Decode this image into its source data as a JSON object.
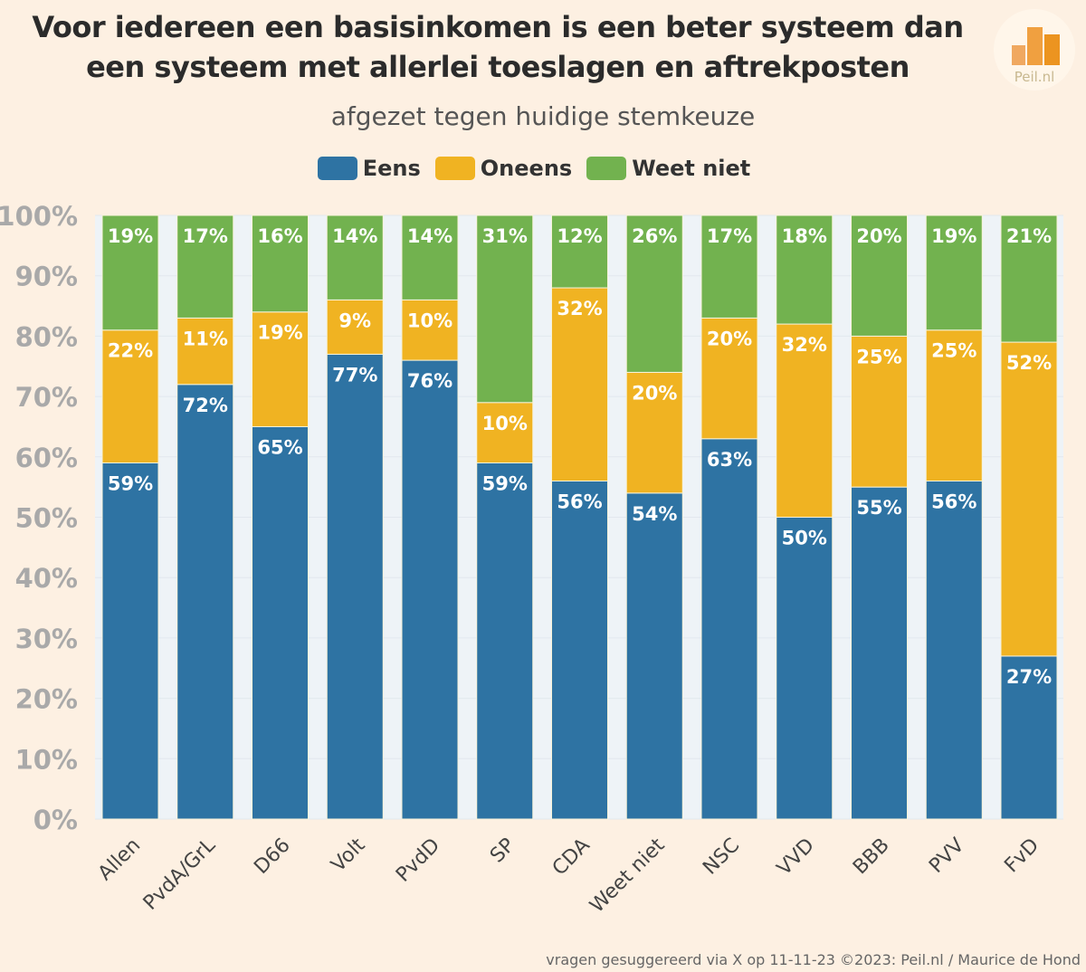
{
  "title_line1": "Voor iedereen een basisinkomen is een beter systeem dan",
  "title_line2": "een systeem met allerlei toeslagen en aftrekposten",
  "subtitle": "afgezet tegen huidige stemkeuze",
  "logo_text": "Peil.nl",
  "footer": "vragen gesuggereerd via X op 11-11-23 ©2023: Peil.nl / Maurice de Hond",
  "colors": {
    "Eens": "#2e73a3",
    "Oneens": "#f0b322",
    "Weet niet": "#72b24f",
    "background": "#fdf0e2",
    "plot_background": "#eef3f7"
  },
  "chart_data": {
    "type": "bar",
    "stacked": true,
    "title": "Voor iedereen een basisinkomen is een beter systeem dan een systeem met allerlei toeslagen en aftrekposten",
    "subtitle": "afgezet tegen huidige stemkeuze",
    "categories": [
      "Allen",
      "PvdA/GrL",
      "D66",
      "Volt",
      "PvdD",
      "SP",
      "CDA",
      "Weet niet",
      "NSC",
      "VVD",
      "BBB",
      "PVV",
      "FvD"
    ],
    "series": [
      {
        "name": "Eens",
        "values": [
          59,
          72,
          65,
          77,
          76,
          59,
          56,
          54,
          63,
          50,
          55,
          56,
          27
        ]
      },
      {
        "name": "Oneens",
        "values": [
          22,
          11,
          19,
          9,
          10,
          10,
          32,
          20,
          20,
          32,
          25,
          25,
          52
        ]
      },
      {
        "name": "Weet niet",
        "values": [
          19,
          17,
          16,
          14,
          14,
          31,
          12,
          26,
          17,
          18,
          20,
          19,
          21
        ]
      }
    ],
    "ylim": [
      0,
      100
    ],
    "yticks": [
      "0%",
      "10%",
      "20%",
      "30%",
      "40%",
      "50%",
      "60%",
      "70%",
      "80%",
      "90%",
      "100%"
    ],
    "legend": "top",
    "data_labels": true,
    "grid": true
  }
}
